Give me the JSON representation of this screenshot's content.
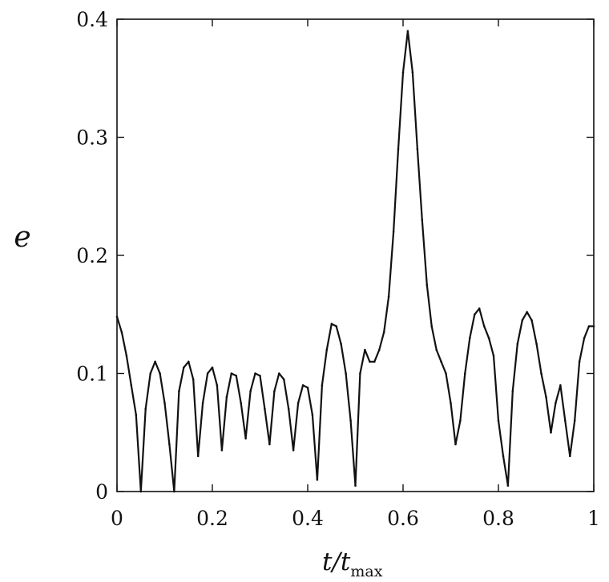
{
  "chart_data": {
    "type": "line",
    "title": "",
    "xlabel": {
      "main": "t/t",
      "subscript": "max"
    },
    "ylabel": "e",
    "xlim": [
      0,
      1
    ],
    "ylim": [
      0,
      0.4
    ],
    "xticks": [
      0,
      0.2,
      0.4,
      0.6,
      0.8,
      1
    ],
    "xtick_labels": [
      "0",
      "0.2",
      "0.4",
      "0.6",
      "0.8",
      "1"
    ],
    "yticks": [
      0,
      0.1,
      0.2,
      0.3,
      0.4
    ],
    "ytick_labels": [
      "0",
      "0.1",
      "0.2",
      "0.3",
      "0.4"
    ],
    "grid": false,
    "legend": "none",
    "line_color": "#111111",
    "series": [
      {
        "x": [
          0,
          0.01,
          0.02,
          0.03,
          0.04,
          0.05,
          0.06,
          0.07,
          0.08,
          0.09,
          0.1,
          0.11,
          0.12,
          0.13,
          0.14,
          0.15,
          0.16,
          0.17,
          0.18,
          0.19,
          0.2,
          0.21,
          0.22,
          0.23,
          0.24,
          0.25,
          0.26,
          0.27,
          0.28,
          0.29,
          0.3,
          0.31,
          0.32,
          0.33,
          0.34,
          0.35,
          0.36,
          0.37,
          0.38,
          0.39,
          0.4,
          0.41,
          0.42,
          0.43,
          0.44,
          0.45,
          0.46,
          0.47,
          0.48,
          0.49,
          0.5,
          0.51,
          0.52,
          0.53,
          0.54,
          0.55,
          0.56,
          0.57,
          0.58,
          0.59,
          0.6,
          0.61,
          0.62,
          0.63,
          0.64,
          0.65,
          0.66,
          0.67,
          0.68,
          0.69,
          0.7,
          0.71,
          0.72,
          0.73,
          0.74,
          0.75,
          0.76,
          0.77,
          0.78,
          0.79,
          0.8,
          0.81,
          0.82,
          0.83,
          0.84,
          0.85,
          0.86,
          0.87,
          0.88,
          0.89,
          0.9,
          0.91,
          0.92,
          0.93,
          0.94,
          0.95,
          0.96,
          0.97,
          0.98,
          0.99,
          1.0
        ],
        "y": [
          0.148,
          0.135,
          0.115,
          0.09,
          0.065,
          0.0,
          0.07,
          0.1,
          0.11,
          0.1,
          0.075,
          0.04,
          0.0,
          0.085,
          0.105,
          0.11,
          0.095,
          0.03,
          0.075,
          0.1,
          0.105,
          0.09,
          0.035,
          0.08,
          0.1,
          0.098,
          0.075,
          0.045,
          0.085,
          0.1,
          0.098,
          0.07,
          0.04,
          0.085,
          0.1,
          0.095,
          0.07,
          0.035,
          0.075,
          0.09,
          0.088,
          0.065,
          0.01,
          0.09,
          0.12,
          0.142,
          0.14,
          0.125,
          0.1,
          0.06,
          0.005,
          0.1,
          0.12,
          0.11,
          0.11,
          0.12,
          0.135,
          0.165,
          0.22,
          0.29,
          0.355,
          0.39,
          0.355,
          0.29,
          0.23,
          0.175,
          0.14,
          0.12,
          0.11,
          0.1,
          0.075,
          0.04,
          0.06,
          0.1,
          0.13,
          0.15,
          0.155,
          0.14,
          0.13,
          0.115,
          0.06,
          0.03,
          0.005,
          0.085,
          0.125,
          0.145,
          0.152,
          0.145,
          0.125,
          0.1,
          0.08,
          0.05,
          0.075,
          0.09,
          0.06,
          0.03,
          0.06,
          0.11,
          0.13,
          0.14,
          0.14
        ]
      }
    ]
  }
}
